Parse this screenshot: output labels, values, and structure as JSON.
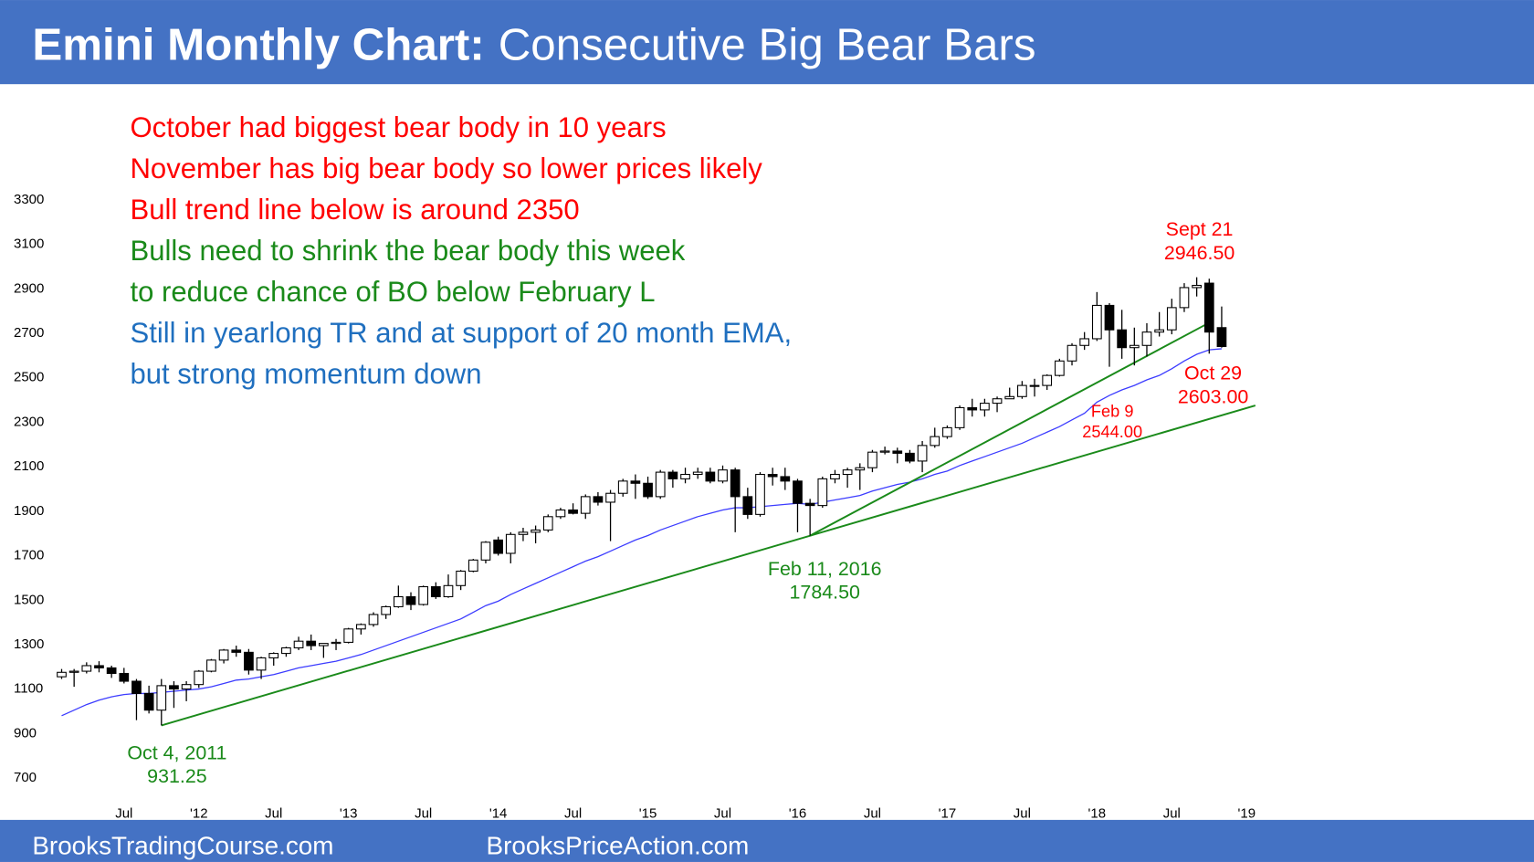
{
  "header": {
    "title_bold": "Emini Monthly Chart:",
    "title": "Consecutive Big Bear Bars"
  },
  "footer": [
    "BrooksTradingCourse.com",
    "BrooksPriceAction.com"
  ],
  "chart_data": {
    "type": "candlestick",
    "notes": [
      {
        "text": "October had biggest bear body in 10 years",
        "color": "#ff0000"
      },
      {
        "text": "November has big bear body so lower prices likely",
        "color": "#ff0000"
      },
      {
        "text": "Bull trend line below is around 2350",
        "color": "#ff0000"
      },
      {
        "text": "Bulls need to shrink the bear body this week",
        "color": "#1a8a1a"
      },
      {
        "text": "to reduce chance of BO below February L",
        "color": "#1a8a1a"
      },
      {
        "text": "Still in yearlong TR and at support of 20 month EMA,",
        "color": "#1f6fbf"
      },
      {
        "text": "but strong momentum down",
        "color": "#1f6fbf"
      }
    ],
    "categories": [
      null,
      null,
      null,
      null,
      null,
      "Jul",
      null,
      null,
      null,
      null,
      null,
      "'12",
      null,
      null,
      null,
      null,
      null,
      "Jul",
      null,
      null,
      null,
      null,
      null,
      "'13",
      null,
      null,
      null,
      null,
      null,
      "Jul",
      null,
      null,
      null,
      null,
      null,
      "'14",
      null,
      null,
      null,
      null,
      null,
      "Jul",
      null,
      null,
      null,
      null,
      null,
      "'15",
      null,
      null,
      null,
      null,
      null,
      "Jul",
      null,
      null,
      null,
      null,
      null,
      "'16",
      null,
      null,
      null,
      null,
      null,
      "Jul",
      null,
      null,
      null,
      null,
      null,
      "'17",
      null,
      null,
      null,
      null,
      null,
      "Jul",
      null,
      null,
      null,
      null,
      null,
      "'18",
      null,
      null,
      null,
      null,
      null,
      "Jul",
      null,
      null,
      null,
      null,
      null,
      "'19"
    ],
    "open": [
      1150,
      1170,
      1175,
      1200,
      1190,
      1165,
      1130,
      1075,
      1000,
      1110,
      1095,
      1115,
      1175,
      1225,
      1270,
      1260,
      1180,
      1235,
      1255,
      1280,
      1310,
      1290,
      1300,
      1305,
      1365,
      1385,
      1430,
      1465,
      1510,
      1475,
      1555,
      1510,
      1560,
      1625,
      1675,
      1765,
      1705,
      1790,
      1800,
      1810,
      1870,
      1900,
      1885,
      1960,
      1935,
      1975,
      2030,
      2020,
      1960,
      2070,
      2040,
      2060,
      2070,
      2030,
      2080,
      1960,
      1880,
      2060,
      2050,
      2030,
      1930,
      1920,
      2040,
      2060,
      2080,
      2090,
      2160,
      2165,
      2155,
      2120,
      2190,
      2230,
      2270,
      2360,
      2350,
      2380,
      2400,
      2410,
      2460,
      2460,
      2505,
      2570,
      2640,
      2670,
      2820,
      2710,
      2630,
      2640,
      2700,
      2710,
      2810,
      2900,
      2920,
      2720,
      null,
      null
    ],
    "high": [
      1185,
      1185,
      1215,
      1220,
      1200,
      1190,
      1140,
      1110,
      1140,
      1130,
      1130,
      1180,
      1230,
      1275,
      1290,
      1275,
      1240,
      1260,
      1285,
      1330,
      1340,
      1300,
      1320,
      1370,
      1390,
      1440,
      1470,
      1560,
      1530,
      1560,
      1575,
      1610,
      1630,
      1680,
      1760,
      1780,
      1800,
      1820,
      1830,
      1880,
      1910,
      1930,
      1970,
      1980,
      1990,
      2040,
      2060,
      2050,
      2080,
      2080,
      2090,
      2090,
      2090,
      2100,
      2090,
      2000,
      2070,
      2090,
      2090,
      2040,
      1950,
      2050,
      2080,
      2090,
      2110,
      2170,
      2185,
      2180,
      2170,
      2210,
      2270,
      2280,
      2370,
      2400,
      2400,
      2410,
      2450,
      2480,
      2490,
      2510,
      2580,
      2650,
      2700,
      2880,
      2830,
      2800,
      2720,
      2740,
      2790,
      2850,
      2920,
      2946.5,
      2940,
      2815,
      null,
      null
    ],
    "low": [
      1140,
      1105,
      1165,
      1170,
      1145,
      1120,
      955,
      985,
      931.25,
      1010,
      1040,
      1100,
      1170,
      1210,
      1240,
      1160,
      1140,
      1200,
      1240,
      1270,
      1270,
      1235,
      1270,
      1300,
      1340,
      1375,
      1410,
      1460,
      1450,
      1470,
      1500,
      1505,
      1540,
      1620,
      1660,
      1695,
      1660,
      1760,
      1750,
      1800,
      1860,
      1880,
      1860,
      1920,
      1760,
      1960,
      1950,
      1950,
      1950,
      2000,
      2020,
      2040,
      2020,
      2020,
      1800,
      1860,
      1870,
      2010,
      1990,
      1800,
      1784.5,
      1910,
      2020,
      2000,
      1990,
      2070,
      2150,
      2110,
      2110,
      2070,
      2180,
      2220,
      2260,
      2320,
      2320,
      2340,
      2400,
      2400,
      2410,
      2440,
      2500,
      2550,
      2620,
      2660,
      2544,
      2580,
      2550,
      2590,
      2680,
      2690,
      2790,
      2860,
      2603,
      2630,
      null,
      null
    ],
    "close": [
      1170,
      1175,
      1200,
      1190,
      1165,
      1130,
      1075,
      1000,
      1110,
      1095,
      1115,
      1175,
      1225,
      1270,
      1260,
      1180,
      1235,
      1255,
      1280,
      1310,
      1290,
      1300,
      1305,
      1365,
      1385,
      1430,
      1465,
      1510,
      1475,
      1555,
      1510,
      1560,
      1625,
      1675,
      1755,
      1705,
      1790,
      1800,
      1810,
      1870,
      1900,
      1885,
      1960,
      1935,
      1975,
      2030,
      2020,
      1960,
      2070,
      2040,
      2060,
      2070,
      2030,
      2080,
      1960,
      1880,
      2060,
      2050,
      2030,
      1930,
      1920,
      2040,
      2060,
      2080,
      2090,
      2160,
      2165,
      2155,
      2120,
      2190,
      2230,
      2270,
      2360,
      2350,
      2380,
      2400,
      2410,
      2460,
      2460,
      2505,
      2570,
      2640,
      2670,
      2820,
      2710,
      2630,
      2640,
      2700,
      2710,
      2810,
      2900,
      2910,
      2700,
      2635,
      null,
      null
    ],
    "up_color": "#ffffff",
    "down_color": "#000000",
    "edge_color": "#000000",
    "ema": {
      "color": "#3c3cff",
      "values": [
        975,
        1000,
        1025,
        1045,
        1060,
        1070,
        1075,
        1075,
        1080,
        1085,
        1090,
        1095,
        1105,
        1120,
        1135,
        1140,
        1150,
        1160,
        1175,
        1190,
        1200,
        1210,
        1220,
        1235,
        1250,
        1270,
        1290,
        1310,
        1330,
        1350,
        1370,
        1390,
        1410,
        1440,
        1470,
        1490,
        1520,
        1545,
        1570,
        1595,
        1620,
        1645,
        1670,
        1690,
        1715,
        1740,
        1765,
        1785,
        1810,
        1830,
        1850,
        1870,
        1885,
        1900,
        1910,
        1910,
        1915,
        1920,
        1925,
        1930,
        1925,
        1935,
        1945,
        1955,
        1965,
        1985,
        2000,
        2015,
        2025,
        2040,
        2060,
        2075,
        2100,
        2120,
        2140,
        2160,
        2180,
        2200,
        2225,
        2250,
        2275,
        2305,
        2335,
        2385,
        2415,
        2440,
        2460,
        2485,
        2505,
        2535,
        2570,
        2600,
        2620,
        2625,
        null,
        null
      ]
    },
    "trend_lines": [
      {
        "color": "#1a8a1a",
        "x": [
          8,
          95.7
        ],
        "values": [
          931.25,
          2370
        ]
      },
      {
        "color": "#1a8a1a",
        "x": [
          60,
          92
        ],
        "values": [
          1784.5,
          2742
        ]
      }
    ],
    "annotations": [
      {
        "lines": [
          "Oct 4, 2011",
          "931.25"
        ],
        "color": "#1a8a1a"
      },
      {
        "lines": [
          "Feb 11, 2016",
          "1784.50"
        ],
        "color": "#1a8a1a"
      },
      {
        "lines": [
          "Feb 9",
          "2544.00"
        ],
        "color": "#ff0000"
      },
      {
        "lines": [
          "Oct 29",
          "2603.00"
        ],
        "color": "#ff0000"
      },
      {
        "lines": [
          "Sept 21",
          "2946.50"
        ],
        "color": "#ff0000"
      }
    ],
    "ylim": [
      700,
      3300
    ],
    "yticks": [
      700,
      900,
      1100,
      1300,
      1500,
      1700,
      1900,
      2100,
      2300,
      2500,
      2700,
      2900,
      3100,
      3300
    ]
  }
}
